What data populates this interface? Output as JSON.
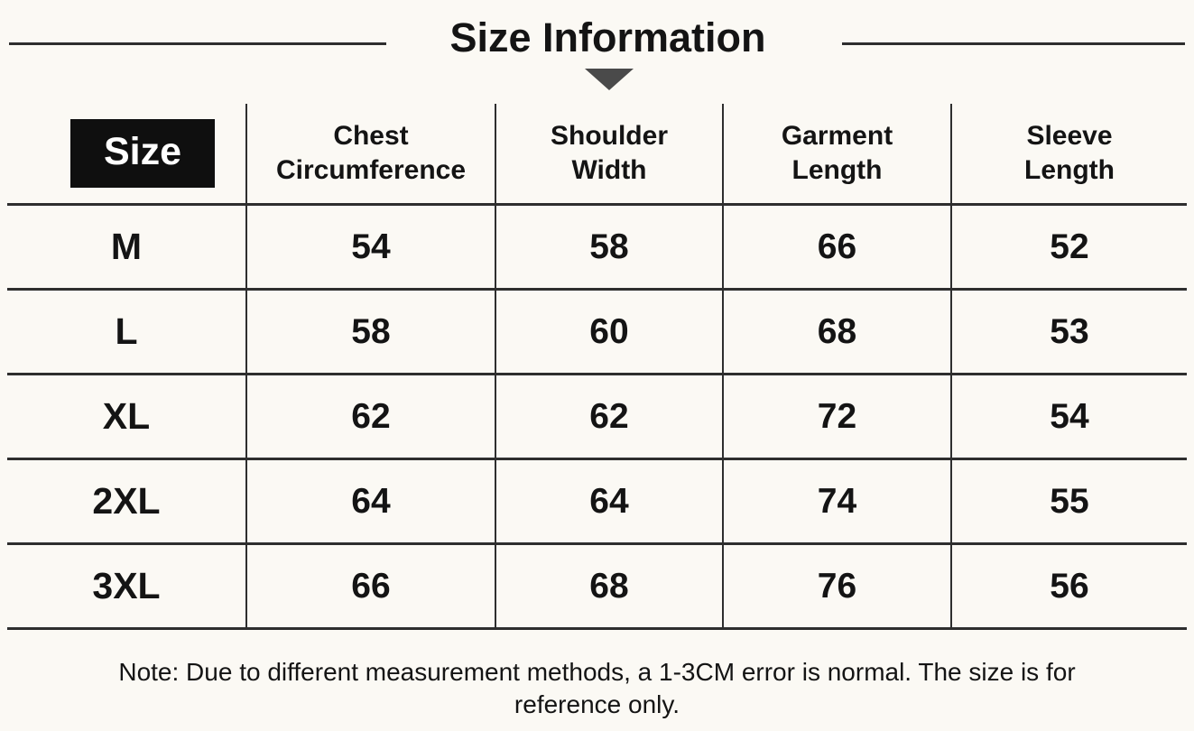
{
  "page": {
    "title": "Size Information",
    "note": "Note: Due to different measurement methods, a 1-3CM error is normal. The size is for reference only."
  },
  "table": {
    "headers": [
      {
        "lines": [
          "Size"
        ]
      },
      {
        "lines": [
          "Chest",
          "Circumference"
        ]
      },
      {
        "lines": [
          "Shoulder",
          "Width"
        ]
      },
      {
        "lines": [
          "Garment",
          "Length"
        ]
      },
      {
        "lines": [
          "Sleeve",
          "Length"
        ]
      }
    ],
    "rows": [
      {
        "label": "M",
        "values": [
          "54",
          "58",
          "66",
          "52"
        ]
      },
      {
        "label": "L",
        "values": [
          "58",
          "60",
          "68",
          "53"
        ]
      },
      {
        "label": "XL",
        "values": [
          "62",
          "62",
          "72",
          "54"
        ]
      },
      {
        "label": "2XL",
        "values": [
          "64",
          "64",
          "74",
          "55"
        ]
      },
      {
        "label": "3XL",
        "values": [
          "66",
          "68",
          "76",
          "56"
        ]
      }
    ]
  },
  "colors": {
    "background": "#fbf9f4",
    "text": "#141414",
    "table_line": "#2e2e2e",
    "size_badge_bg": "#0f0f0f",
    "size_badge_text": "#ffffff",
    "arrow": "#4a4a4a"
  }
}
